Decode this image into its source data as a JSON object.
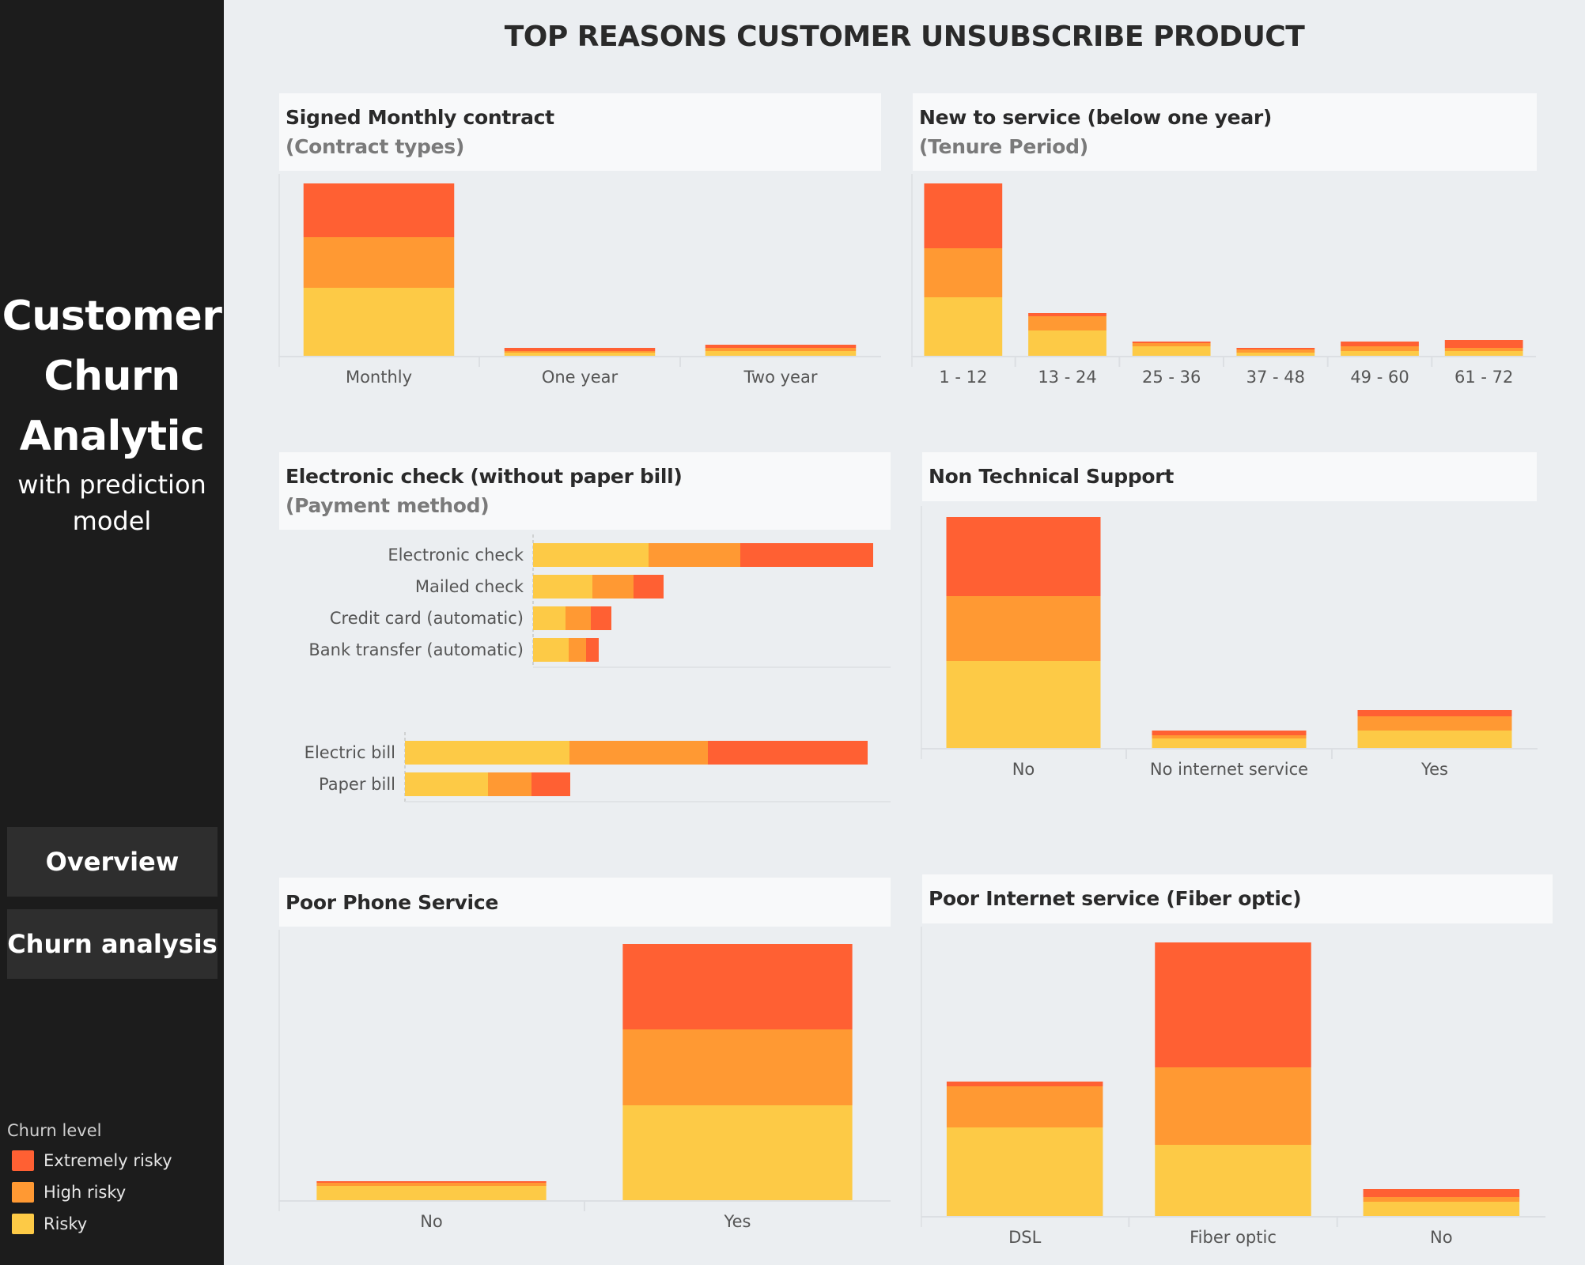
{
  "sidebar": {
    "brand_line1": "Customer",
    "brand_line2": "Churn",
    "brand_line3": "Analytic",
    "brand_sub1": "with prediction",
    "brand_sub2": "model",
    "nav": [
      {
        "label": "Overview"
      },
      {
        "label": "Churn analysis"
      }
    ],
    "legend": {
      "title": "Churn level",
      "items": [
        {
          "label": "Extremely risky",
          "color": "#ff6033"
        },
        {
          "label": "High risky",
          "color": "#ff9933"
        },
        {
          "label": "Risky",
          "color": "#fdca46"
        }
      ]
    }
  },
  "header": {
    "title": "TOP REASONS CUSTOMER UNSUBSCRIBE PRODUCT"
  },
  "colors": {
    "Risky": "#fdca46",
    "High risky": "#ff9933",
    "Extremely risky": "#ff6033"
  },
  "panels": {
    "contract": {
      "title": "Signed Monthly contract",
      "subtitle": "(Contract types)"
    },
    "tenure": {
      "title": "New to service (below one year)",
      "subtitle": "(Tenure Period)"
    },
    "payment": {
      "title": "Electronic check (without paper bill)",
      "subtitle": "(Payment method)"
    },
    "techsupport": {
      "title": "Non Technical Support"
    },
    "phone": {
      "title": "Poor Phone Service"
    },
    "internet": {
      "title": "Poor Internet service (Fiber optic)"
    }
  },
  "chart_data": [
    {
      "id": "contract",
      "type": "bar",
      "stacked": true,
      "orientation": "vertical",
      "title": "Signed Monthly contract",
      "subtitle": "(Contract types)",
      "categories": [
        "Monthly",
        "One year",
        "Two year"
      ],
      "series": [
        {
          "name": "Risky",
          "values": [
            86,
            4,
            6
          ]
        },
        {
          "name": "High risky",
          "values": [
            64,
            2,
            4
          ]
        },
        {
          "name": "Extremely risky",
          "values": [
            68,
            4,
            4
          ]
        }
      ],
      "units": "relative count (estimated)",
      "grid": false,
      "legend": "sidebar"
    },
    {
      "id": "tenure",
      "type": "bar",
      "stacked": true,
      "orientation": "vertical",
      "title": "New to service (below one year)",
      "subtitle": "(Tenure Period)",
      "categories": [
        "1 - 12",
        "13 - 24",
        "25 - 36",
        "37 - 48",
        "49 - 60",
        "61 - 72"
      ],
      "series": [
        {
          "name": "Risky",
          "values": [
            74,
            32,
            12,
            4,
            6,
            6
          ]
        },
        {
          "name": "High risky",
          "values": [
            62,
            18,
            4,
            4,
            6,
            4
          ]
        },
        {
          "name": "Extremely risky",
          "values": [
            82,
            4,
            2,
            2,
            6,
            10
          ]
        }
      ],
      "units": "relative count (estimated)",
      "grid": false
    },
    {
      "id": "payment",
      "type": "bar",
      "stacked": true,
      "orientation": "horizontal",
      "title": "Electronic check (without paper bill)",
      "subtitle": "(Payment method)",
      "categories": [
        "Electronic check",
        "Mailed check",
        "Credit card (automatic)",
        "Bank transfer (automatic)"
      ],
      "series": [
        {
          "name": "Risky",
          "values": [
            146,
            75,
            41,
            45
          ]
        },
        {
          "name": "High risky",
          "values": [
            116,
            52,
            32,
            22
          ]
        },
        {
          "name": "Extremely risky",
          "values": [
            168,
            38,
            26,
            16
          ]
        }
      ],
      "units": "relative count (estimated)",
      "grid": false
    },
    {
      "id": "billing",
      "type": "bar",
      "stacked": true,
      "orientation": "horizontal",
      "title": "",
      "categories": [
        "Electric bill",
        "Paper bill"
      ],
      "series": [
        {
          "name": "Risky",
          "values": [
            208,
            105
          ]
        },
        {
          "name": "High risky",
          "values": [
            175,
            55
          ]
        },
        {
          "name": "Extremely risky",
          "values": [
            202,
            49
          ]
        }
      ],
      "units": "relative count (estimated)",
      "grid": false
    },
    {
      "id": "techsupport",
      "type": "bar",
      "stacked": true,
      "orientation": "vertical",
      "title": "Non Technical Support",
      "categories": [
        "No",
        "No internet service",
        "Yes"
      ],
      "series": [
        {
          "name": "Risky",
          "values": [
            110,
            12,
            22
          ]
        },
        {
          "name": "High risky",
          "values": [
            82,
            4,
            18
          ]
        },
        {
          "name": "Extremely risky",
          "values": [
            100,
            6,
            8
          ]
        }
      ],
      "units": "relative count (estimated)",
      "grid": false
    },
    {
      "id": "phone",
      "type": "bar",
      "stacked": true,
      "orientation": "vertical",
      "title": "Poor Phone Service",
      "categories": [
        "No",
        "Yes"
      ],
      "series": [
        {
          "name": "Risky",
          "values": [
            18,
            120
          ]
        },
        {
          "name": "High risky",
          "values": [
            4,
            96
          ]
        },
        {
          "name": "Extremely risky",
          "values": [
            2,
            108
          ]
        }
      ],
      "units": "relative count (estimated)",
      "grid": false
    },
    {
      "id": "internet",
      "type": "bar",
      "stacked": true,
      "orientation": "vertical",
      "title": "Poor Internet service (Fiber optic)",
      "categories": [
        "DSL",
        "Fiber optic",
        "No"
      ],
      "series": [
        {
          "name": "Risky",
          "values": [
            112,
            90,
            18
          ]
        },
        {
          "name": "High risky",
          "values": [
            52,
            98,
            6
          ]
        },
        {
          "name": "Extremely risky",
          "values": [
            6,
            158,
            10
          ]
        }
      ],
      "units": "relative count (estimated)",
      "grid": false
    }
  ]
}
